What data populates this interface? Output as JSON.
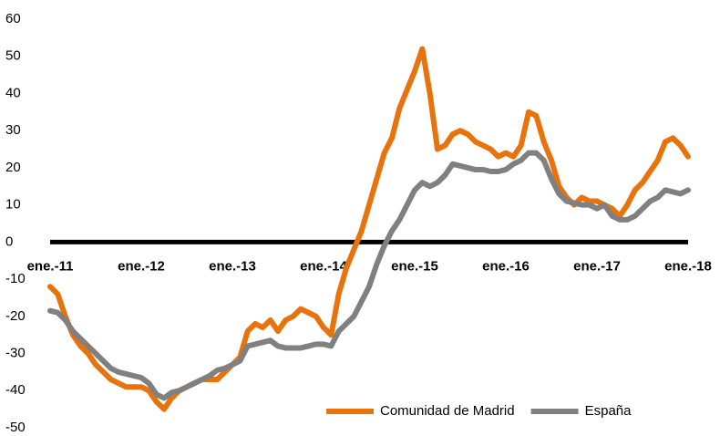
{
  "chart_data": {
    "type": "line",
    "categories": [
      "ene.-11",
      null,
      null,
      null,
      null,
      null,
      null,
      null,
      null,
      null,
      null,
      null,
      "ene.-12",
      null,
      null,
      null,
      null,
      null,
      null,
      null,
      null,
      null,
      null,
      null,
      "ene.-13",
      null,
      null,
      null,
      null,
      null,
      null,
      null,
      null,
      null,
      null,
      null,
      "ene.-14",
      null,
      null,
      null,
      null,
      null,
      null,
      null,
      null,
      null,
      null,
      null,
      "ene.-15",
      null,
      null,
      null,
      null,
      null,
      null,
      null,
      null,
      null,
      null,
      null,
      "ene.-16",
      null,
      null,
      null,
      null,
      null,
      null,
      null,
      null,
      null,
      null,
      null,
      "ene.-17",
      null,
      null,
      null,
      null,
      null,
      null,
      null,
      null,
      null,
      null,
      null,
      "ene.-18"
    ],
    "series": [
      {
        "name": "Comunidad de Madrid",
        "color": "#e8720c",
        "values": [
          -12,
          -14,
          -20,
          -25,
          -28,
          -30,
          -33,
          -35,
          -37,
          -38,
          -39,
          -39,
          -39,
          -40,
          -43,
          -45,
          -42,
          -40,
          -39,
          -38,
          -37,
          -37,
          -37,
          -35,
          -33,
          -31,
          -24,
          -22,
          -23,
          -21,
          -24,
          -21,
          -20,
          -18,
          -19,
          -20,
          -23,
          -25,
          -14,
          -7,
          -2,
          3,
          10,
          17,
          24,
          28,
          36,
          41,
          46,
          52,
          40,
          25,
          26,
          29,
          30,
          29,
          27,
          26,
          25,
          23,
          24,
          23,
          26,
          35,
          34,
          27,
          22,
          15,
          12,
          10,
          12,
          11,
          11,
          10,
          9,
          7,
          10,
          14,
          16,
          19,
          22,
          27,
          28,
          26,
          23
        ]
      },
      {
        "name": "España",
        "color": "#808080",
        "values": [
          -18.5,
          -19,
          -21,
          -24,
          -26,
          -28,
          -30,
          -32,
          -34,
          -35,
          -35.5,
          -36,
          -36.5,
          -38,
          -41,
          -42,
          -40.5,
          -40,
          -39,
          -38,
          -37,
          -36,
          -34.5,
          -34,
          -33,
          -32,
          -28,
          -27.5,
          -27,
          -26.5,
          -28,
          -28.5,
          -28.5,
          -28.5,
          -28,
          -27.5,
          -27.5,
          -28,
          -24,
          -22,
          -20,
          -16,
          -12,
          -6,
          -1,
          3,
          6,
          10,
          14,
          16,
          15,
          16,
          18,
          21,
          20.5,
          20,
          19.5,
          19.5,
          19,
          19,
          19.5,
          21,
          22,
          24,
          24,
          22,
          17,
          13,
          11,
          10.5,
          10,
          10,
          9,
          10,
          7,
          6,
          6,
          7,
          9,
          11,
          12,
          14,
          13.5,
          13,
          14
        ]
      }
    ],
    "ylim": [
      -50,
      60
    ],
    "yticks": [
      -50,
      -40,
      -30,
      -20,
      -10,
      0,
      10,
      20,
      30,
      40,
      50,
      60
    ],
    "grid": false,
    "legend": "lower right"
  }
}
